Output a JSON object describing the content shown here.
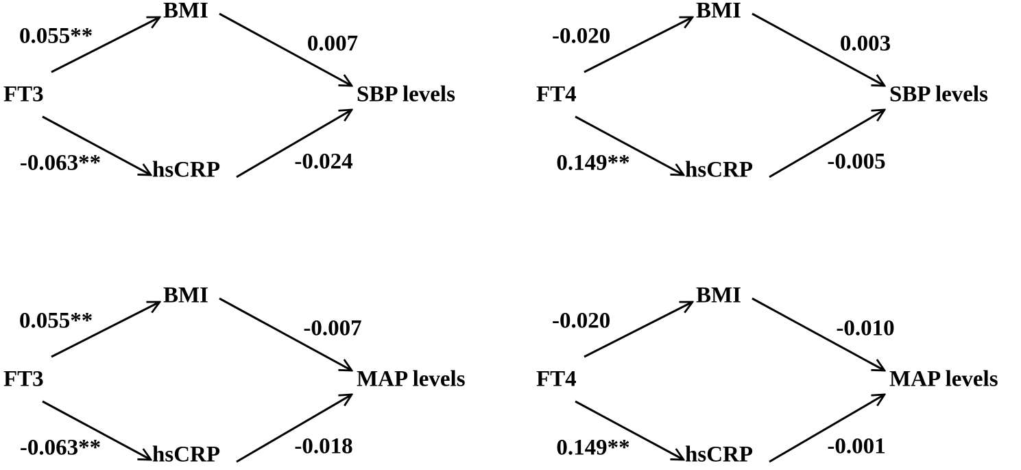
{
  "panels": [
    {
      "source": "FT3",
      "mediator_top": "BMI",
      "mediator_bottom": "hsCRP",
      "outcome": "SBP levels",
      "a_top": "0.055**",
      "b_top": "0.007",
      "a_bottom": "-0.063**",
      "b_bottom": "-0.024"
    },
    {
      "source": "FT4",
      "mediator_top": "BMI",
      "mediator_bottom": "hsCRP",
      "outcome": "SBP levels",
      "a_top": "-0.020",
      "b_top": "0.003",
      "a_bottom": "0.149**",
      "b_bottom": "-0.005"
    },
    {
      "source": "FT3",
      "mediator_top": "BMI",
      "mediator_bottom": "hsCRP",
      "outcome": "MAP levels",
      "a_top": "0.055**",
      "b_top": "-0.007",
      "a_bottom": "-0.063**",
      "b_bottom": "-0.018"
    },
    {
      "source": "FT4",
      "mediator_top": "BMI",
      "mediator_bottom": "hsCRP",
      "outcome": "MAP levels",
      "a_top": "-0.020",
      "b_top": "-0.010",
      "a_bottom": "0.149**",
      "b_bottom": "-0.001"
    }
  ]
}
